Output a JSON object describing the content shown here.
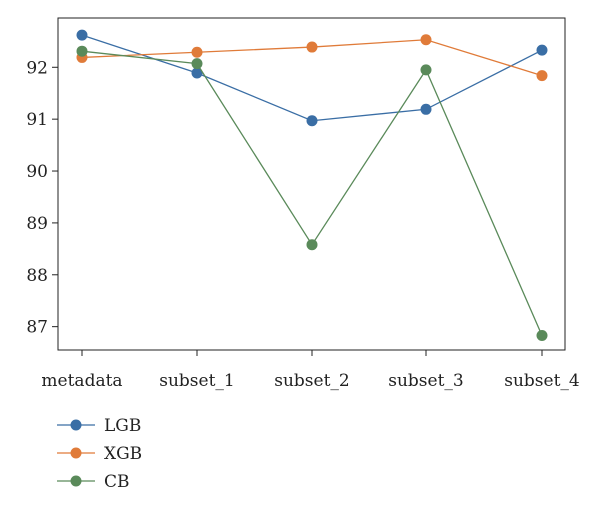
{
  "chart_data": {
    "type": "line",
    "categories": [
      "metadata",
      "subset_1",
      "subset_2",
      "subset_3",
      "subset_4"
    ],
    "series": [
      {
        "name": "LGB",
        "color": "#3a6ea5",
        "values": [
          92.62,
          91.89,
          90.97,
          91.19,
          92.33
        ]
      },
      {
        "name": "XGB",
        "color": "#e07b39",
        "values": [
          92.19,
          92.29,
          92.39,
          92.53,
          91.84
        ]
      },
      {
        "name": "CB",
        "color": "#5a8a5a",
        "values": [
          92.31,
          92.07,
          88.58,
          91.95,
          86.83
        ]
      }
    ],
    "yticks": [
      87,
      88,
      89,
      90,
      91,
      92
    ],
    "ylim": [
      86.55,
      92.95
    ],
    "legend_position": "bottom-left",
    "grid": false
  }
}
